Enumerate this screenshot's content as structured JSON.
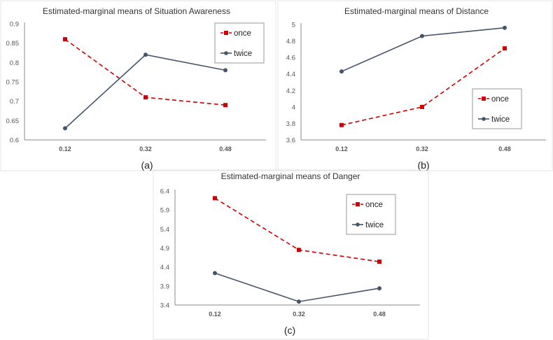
{
  "colors": {
    "once": "#cc0000",
    "twice": "#44546a",
    "axis": "#888888"
  },
  "chart_data": [
    {
      "type": "line",
      "title": "Estimated-marginal means of Situation Awareness",
      "caption": "(a)",
      "categories": [
        "0.12",
        "0.32",
        "0.48"
      ],
      "yticks": [
        "0.6",
        "0.65",
        "0.7",
        "0.75",
        "0.8",
        "0.85",
        "0.9"
      ],
      "ylim": [
        0.6,
        0.9
      ],
      "legend_position": "top-right",
      "series": [
        {
          "name": "once",
          "values": [
            0.86,
            0.71,
            0.69
          ]
        },
        {
          "name": "twice",
          "values": [
            0.63,
            0.82,
            0.78
          ]
        }
      ]
    },
    {
      "type": "line",
      "title": "Estimated-marginal means of Distance",
      "caption": "(b)",
      "categories": [
        "0.12",
        "0.32",
        "0.48"
      ],
      "yticks": [
        "3.6",
        "3.8",
        "4",
        "4.2",
        "4.4",
        "4.6",
        "4.8",
        "5"
      ],
      "ylim": [
        3.6,
        5.0
      ],
      "legend_position": "bottom-right",
      "series": [
        {
          "name": "once",
          "values": [
            3.78,
            4.0,
            4.71
          ]
        },
        {
          "name": "twice",
          "values": [
            4.43,
            4.86,
            4.96
          ]
        }
      ]
    },
    {
      "type": "line",
      "title": "Estimated-marginal means of Danger",
      "caption": "(c)",
      "categories": [
        "0.12",
        "0.32",
        "0.48"
      ],
      "yticks": [
        "3.4",
        "3.9",
        "4.4",
        "4.9",
        "5.4",
        "5.9",
        "6.4"
      ],
      "ylim": [
        3.4,
        6.4
      ],
      "legend_position": "top-right",
      "series": [
        {
          "name": "once",
          "values": [
            6.21,
            4.85,
            4.54
          ]
        },
        {
          "name": "twice",
          "values": [
            4.24,
            3.49,
            3.84
          ]
        }
      ]
    }
  ]
}
